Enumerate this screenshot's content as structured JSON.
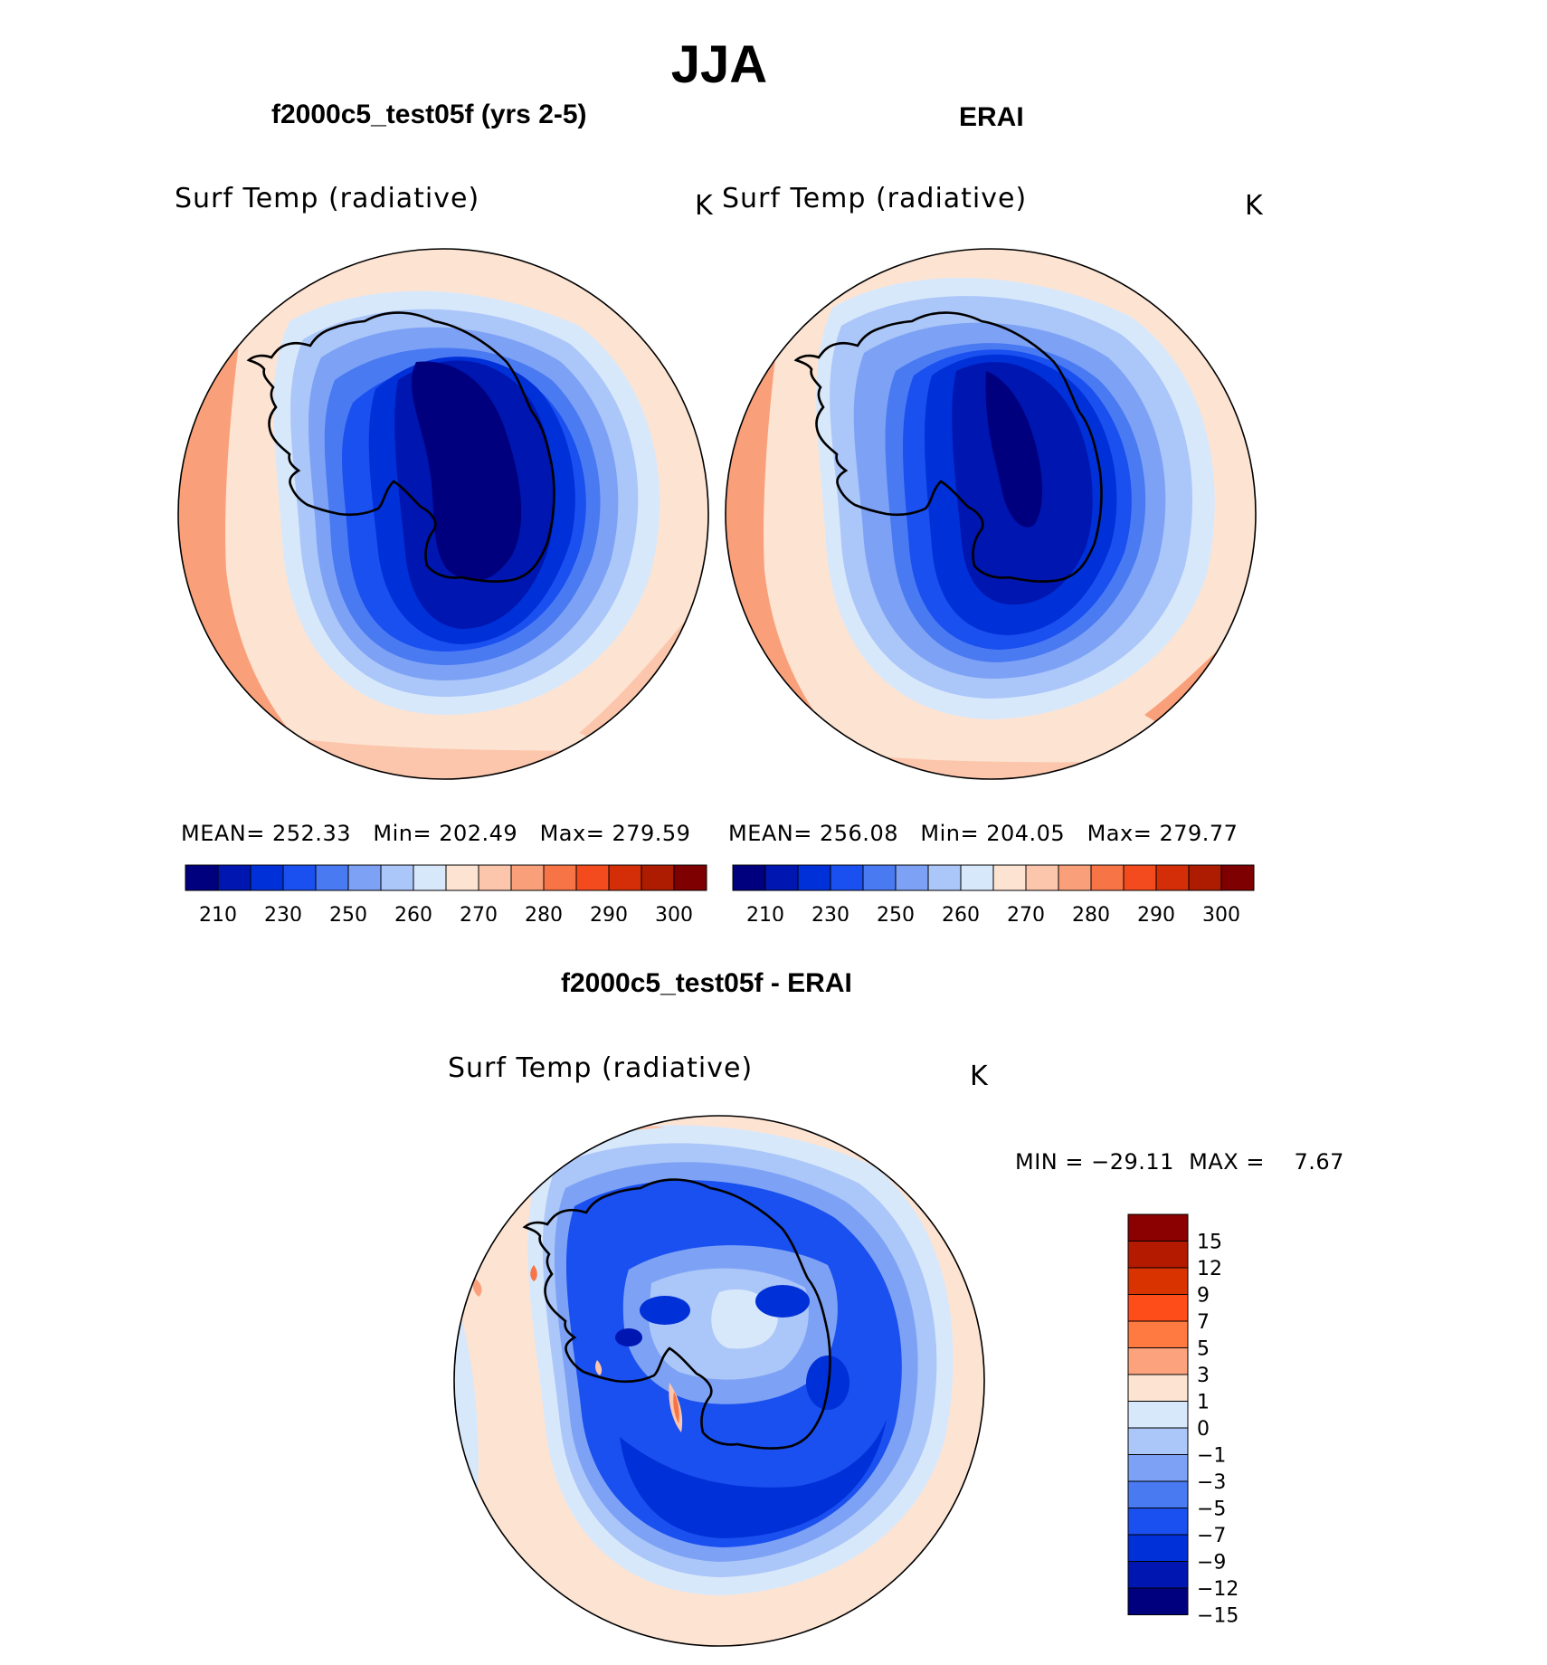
{
  "title": "JJA",
  "panels": [
    {
      "title": "f2000c5_test05f (yrs 2-5)",
      "variable": "Surf Temp (radiative)",
      "units": "K",
      "mean_label": "MEAN=",
      "mean": "252.33",
      "min_label": "Min=",
      "min": "202.49",
      "max_label": "Max=",
      "max": "279.59"
    },
    {
      "title": "ERAI",
      "variable": "Surf Temp (radiative)",
      "units": "K",
      "mean_label": "MEAN=",
      "mean": "256.08",
      "min_label": "Min=",
      "min": "204.05",
      "max_label": "Max=",
      "max": "279.77"
    }
  ],
  "diff_panel": {
    "title": "f2000c5_test05f - ERAI",
    "variable": "Surf Temp (radiative)",
    "units": "K",
    "minmax_text": "MIN = −29.11  MAX =    7.67"
  },
  "abs_colorbar": {
    "colors": [
      "#00007f",
      "#0016b0",
      "#0030d8",
      "#1a4ff0",
      "#4a7af2",
      "#7da2f5",
      "#abc6f8",
      "#d8e8fb",
      "#fde3d2",
      "#fcc6ac",
      "#f9a07a",
      "#f77446",
      "#f34a1e",
      "#d42e08",
      "#ad1c00",
      "#7f0000"
    ],
    "tick_labels": [
      "210",
      "230",
      "250",
      "260",
      "270",
      "280",
      "290",
      "300"
    ]
  },
  "diff_colorbar": {
    "colors_top_to_bottom": [
      "#8b0000",
      "#b31a00",
      "#d93300",
      "#ff4d1a",
      "#ff7a40",
      "#fca37e",
      "#fde3d2",
      "#d8e8fb",
      "#abc6f8",
      "#7da2f5",
      "#4a7af2",
      "#1a4ff0",
      "#0030d8",
      "#0016b0",
      "#00007f"
    ],
    "tick_labels": [
      "15",
      "12",
      "9",
      "7",
      "5",
      "3",
      "1",
      "0",
      "−1",
      "−3",
      "−5",
      "−7",
      "−9",
      "−12",
      "−15"
    ]
  }
}
